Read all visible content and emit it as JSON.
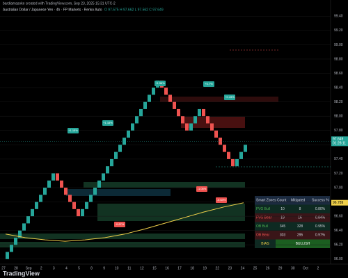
{
  "header": {
    "credit": "bardiamasoke created with TradingView.com, Sep 23, 2025 15:31 UTC-2",
    "logo": "TradingView"
  },
  "chart_data": {
    "type": "candlestick",
    "title": "Australian Dollar / Japanese Yen · 4h · FP Markets · Renko Auto",
    "ohlc_label": "O 97.575 H 97.662 L 97.562 C 97.649",
    "up_color": "#26a69a",
    "down_color": "#ef5350",
    "open": [
      96.0,
      96.1,
      96.2,
      96.3,
      96.4,
      96.5,
      96.6,
      96.7,
      96.8,
      96.9,
      97.0,
      97.1,
      97.2,
      97.1,
      97.0,
      96.9,
      96.8,
      96.7,
      96.6,
      96.7,
      96.8,
      96.9,
      97.0,
      97.1,
      97.2,
      97.3,
      97.4,
      97.5,
      97.6,
      97.7,
      97.8,
      97.9,
      98.0,
      98.1,
      98.2,
      98.3,
      98.4,
      98.5,
      98.4,
      98.3,
      98.2,
      98.1,
      98.0,
      97.9,
      97.8,
      97.9,
      98.0,
      98.1,
      98.0,
      97.9,
      97.8,
      97.7,
      97.6,
      97.5,
      97.4,
      97.3,
      97.4,
      97.5
    ],
    "close": [
      96.1,
      96.2,
      96.3,
      96.4,
      96.5,
      96.6,
      96.7,
      96.8,
      96.9,
      97.0,
      97.1,
      97.2,
      97.1,
      97.0,
      96.9,
      96.8,
      96.7,
      96.6,
      96.7,
      96.8,
      96.9,
      97.0,
      97.1,
      97.2,
      97.3,
      97.4,
      97.5,
      97.6,
      97.7,
      97.8,
      97.9,
      98.0,
      98.1,
      98.2,
      98.3,
      98.4,
      98.5,
      98.4,
      98.3,
      98.2,
      98.1,
      98.0,
      97.9,
      97.8,
      97.9,
      98.0,
      98.1,
      98.0,
      97.9,
      97.8,
      97.7,
      97.6,
      97.5,
      97.4,
      97.3,
      97.4,
      97.5,
      97.6
    ],
    "ma": {
      "color": "#f0d04a",
      "values": [
        96.35,
        96.3,
        96.27,
        96.25,
        96.27,
        96.3,
        96.35,
        96.42,
        96.5,
        96.58,
        96.66,
        96.73,
        96.789
      ]
    },
    "last_price": {
      "value": 97.649,
      "countdown": "01:28:11",
      "color": "#26a69a"
    },
    "ma_tag": {
      "value": 96.789,
      "color": "#f0d04a"
    },
    "ylim": [
      95.93,
      99.51
    ],
    "yticks": [
      {
        "value": 96.0,
        "label": "96.00"
      },
      {
        "value": 96.2,
        "label": "96.20"
      },
      {
        "value": 96.4,
        "label": "96.40"
      },
      {
        "value": 96.6,
        "label": "96.60"
      },
      {
        "value": 96.8,
        "label": "96.80"
      },
      {
        "value": 97.0,
        "label": "97.00"
      },
      {
        "value": 97.2,
        "label": "97.20"
      },
      {
        "value": 97.4,
        "label": "97.40"
      },
      {
        "value": 97.6,
        "label": "97.60"
      },
      {
        "value": 97.8,
        "label": "97.80"
      },
      {
        "value": 98.0,
        "label": "98.00"
      },
      {
        "value": 98.2,
        "label": "98.20"
      },
      {
        "value": 98.4,
        "label": "98.40"
      },
      {
        "value": 98.6,
        "label": "98.60"
      },
      {
        "value": 98.8,
        "label": "98.80"
      },
      {
        "value": 99.0,
        "label": "99.00"
      },
      {
        "value": 99.2,
        "label": "99.20"
      },
      {
        "value": 99.4,
        "label": "99.40"
      }
    ],
    "xtick_labels": [
      "27",
      "28",
      "Sep",
      "2",
      "3",
      "4",
      "5",
      "8",
      "9",
      "10",
      "11",
      "12",
      "15",
      "16",
      "17",
      "18",
      "19",
      "22",
      "23",
      "24",
      "25",
      "26",
      "29",
      "30",
      "Oct",
      "2"
    ],
    "annotations": [
      "+1.15%",
      "+1.18%",
      "+1.56%",
      "+0.7%",
      "+0.43%",
      "-1.05%",
      "-0.87%",
      "-0.63%"
    ]
  },
  "table": {
    "header": [
      "Smart Zones",
      "Count",
      "Mitigated",
      "Success %"
    ],
    "rows": [
      [
        "FVG Bull",
        "10",
        "8",
        "0.80%"
      ],
      [
        "FVG Bear",
        "19",
        "16",
        "0.84%"
      ],
      [
        "OB Bull",
        "345",
        "328",
        "0.95%"
      ],
      [
        "OB Bear",
        "303",
        "295",
        "0.97%"
      ]
    ],
    "bias": [
      "BIAS",
      "BULLISH"
    ]
  }
}
